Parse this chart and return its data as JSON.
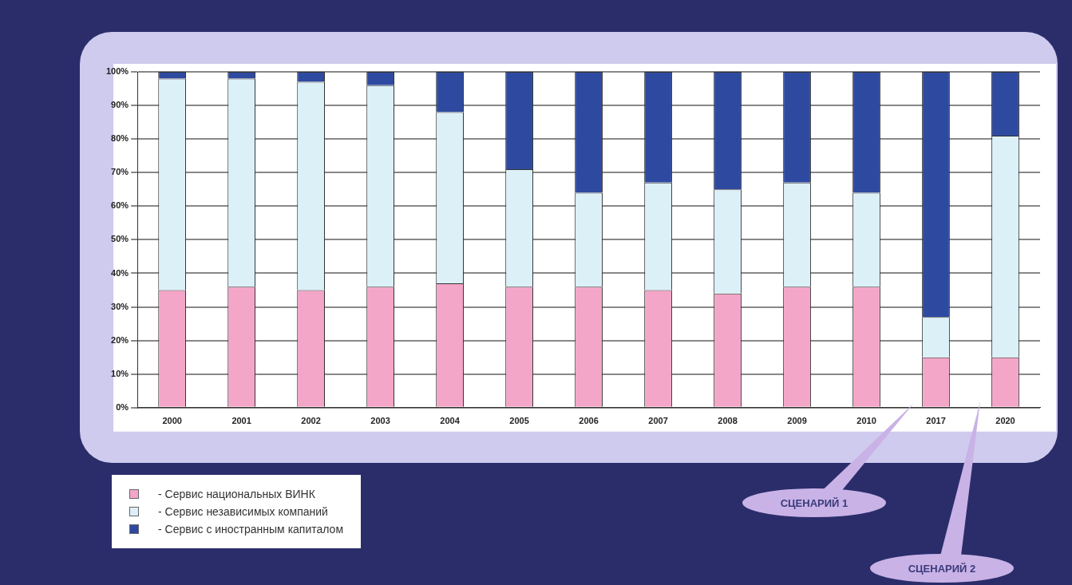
{
  "chart_data": {
    "type": "bar",
    "stacked": true,
    "categories": [
      "2000",
      "2001",
      "2002",
      "2003",
      "2004",
      "2005",
      "2006",
      "2007",
      "2008",
      "2009",
      "2010",
      "2017",
      "2020"
    ],
    "series": [
      {
        "name": "- Сервис национальных ВИНК",
        "color": "#f4a6c8",
        "values": [
          35,
          36,
          35,
          36,
          37,
          36,
          36,
          35,
          34,
          36,
          36,
          15,
          15
        ]
      },
      {
        "name": "- Сервис независимых компаний",
        "color": "#dcf0f8",
        "values": [
          63,
          62,
          62,
          60,
          51,
          35,
          28,
          32,
          31,
          31,
          28,
          12,
          66
        ]
      },
      {
        "name": "- Сервис с иностранным капиталом",
        "color": "#2e4aa0",
        "values": [
          2,
          2,
          3,
          4,
          12,
          29,
          36,
          33,
          35,
          33,
          36,
          73,
          19
        ]
      }
    ],
    "ylim": [
      0,
      100
    ],
    "yticks": [
      {
        "value": 0,
        "label": "0%"
      },
      {
        "value": 10,
        "label": "10%"
      },
      {
        "value": 20,
        "label": "20%"
      },
      {
        "value": 30,
        "label": "30%"
      },
      {
        "value": 40,
        "label": "40%"
      },
      {
        "value": 50,
        "label": "50%"
      },
      {
        "value": 60,
        "label": "60%"
      },
      {
        "value": 70,
        "label": "70%"
      },
      {
        "value": 80,
        "label": "80%"
      },
      {
        "value": 90,
        "label": "90%"
      },
      {
        "value": 100,
        "label": "100%"
      }
    ],
    "grid": "y",
    "legend": "bottom left",
    "annotations": [
      "СЦЕНАРИЙ 1",
      "СЦЕНАРИЙ 2"
    ]
  }
}
